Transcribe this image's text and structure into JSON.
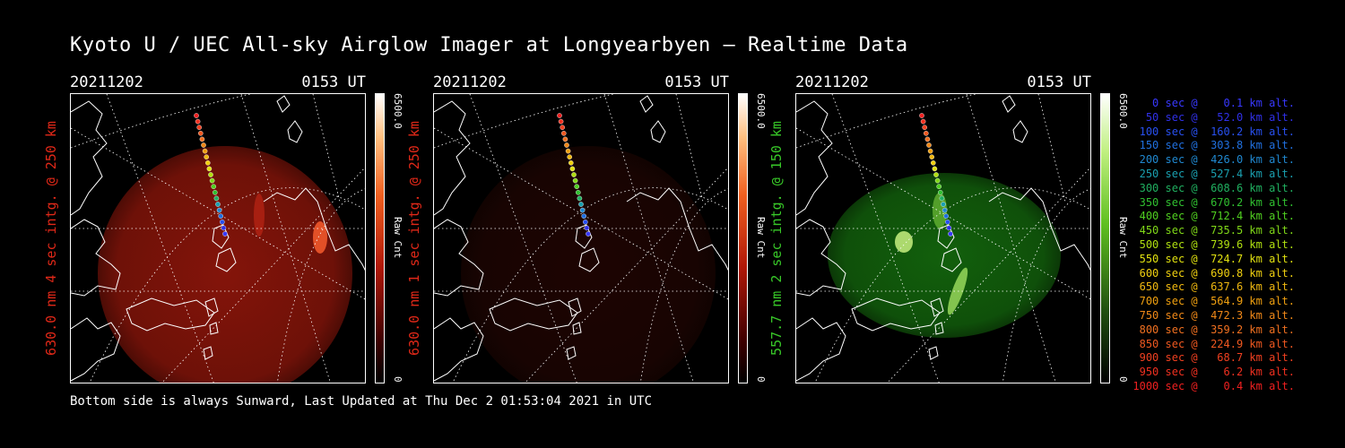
{
  "title": "Kyoto U / UEC All-sky Airglow Imager at Longyearbyen — Realtime Data",
  "footer": "Bottom side is always Sunward, Last Updated at Thu Dec  2 01:53:04 2021 in UTC",
  "panels": [
    {
      "date": "20211202",
      "time": "0153 UT",
      "label": "630.0 nm 4 sec intg. @ 250 km",
      "label_color": "#e02818",
      "cbar_max": "6500.0",
      "cbar_unit": "Raw Cnt",
      "cbar_min": "0",
      "palette": "red",
      "brightness": 0.55
    },
    {
      "date": "20211202",
      "time": "0153 UT",
      "label": "630.0 nm 1 sec intg. @ 250 km",
      "label_color": "#e02818",
      "cbar_max": "6500.0",
      "cbar_unit": "Raw Cnt",
      "cbar_min": "0",
      "palette": "red",
      "brightness": 0.12
    },
    {
      "date": "20211202",
      "time": "0153 UT",
      "label": "557.7 nm 2 sec intg. @ 150 km",
      "label_color": "#38c828",
      "cbar_max": "6500.0",
      "cbar_unit": "Raw Cnt",
      "cbar_min": "0",
      "palette": "green",
      "brightness": 0.5
    }
  ],
  "legend": [
    {
      "text": "   0 sec @    0.1 km alt.",
      "color": "#3838ff"
    },
    {
      "text": "  50 sec @   52.0 km alt.",
      "color": "#3030e8"
    },
    {
      "text": " 100 sec @  160.2 km alt.",
      "color": "#2850f0"
    },
    {
      "text": " 150 sec @  303.8 km alt.",
      "color": "#2070e0"
    },
    {
      "text": " 200 sec @  426.0 km alt.",
      "color": "#2088d0"
    },
    {
      "text": " 250 sec @  527.4 km alt.",
      "color": "#1aa0b0"
    },
    {
      "text": " 300 sec @  608.6 km alt.",
      "color": "#20b060"
    },
    {
      "text": " 350 sec @  670.2 km alt.",
      "color": "#30c030"
    },
    {
      "text": " 400 sec @  712.4 km alt.",
      "color": "#50d020"
    },
    {
      "text": " 450 sec @  735.5 km alt.",
      "color": "#80d818"
    },
    {
      "text": " 500 sec @  739.6 km alt.",
      "color": "#b0e010"
    },
    {
      "text": " 550 sec @  724.7 km alt.",
      "color": "#e0e010"
    },
    {
      "text": " 600 sec @  690.8 km alt.",
      "color": "#f0d010"
    },
    {
      "text": " 650 sec @  637.6 km alt.",
      "color": "#f0b810"
    },
    {
      "text": " 700 sec @  564.9 km alt.",
      "color": "#f0a010"
    },
    {
      "text": " 750 sec @  472.3 km alt.",
      "color": "#f08818"
    },
    {
      "text": " 800 sec @  359.2 km alt.",
      "color": "#f07020"
    },
    {
      "text": " 850 sec @  224.9 km alt.",
      "color": "#f05820"
    },
    {
      "text": " 900 sec @   68.7 km alt.",
      "color": "#f04020"
    },
    {
      "text": " 950 sec @    6.2 km alt.",
      "color": "#f03020"
    },
    {
      "text": "1000 sec @    0.4 km alt.",
      "color": "#f02020"
    }
  ]
}
